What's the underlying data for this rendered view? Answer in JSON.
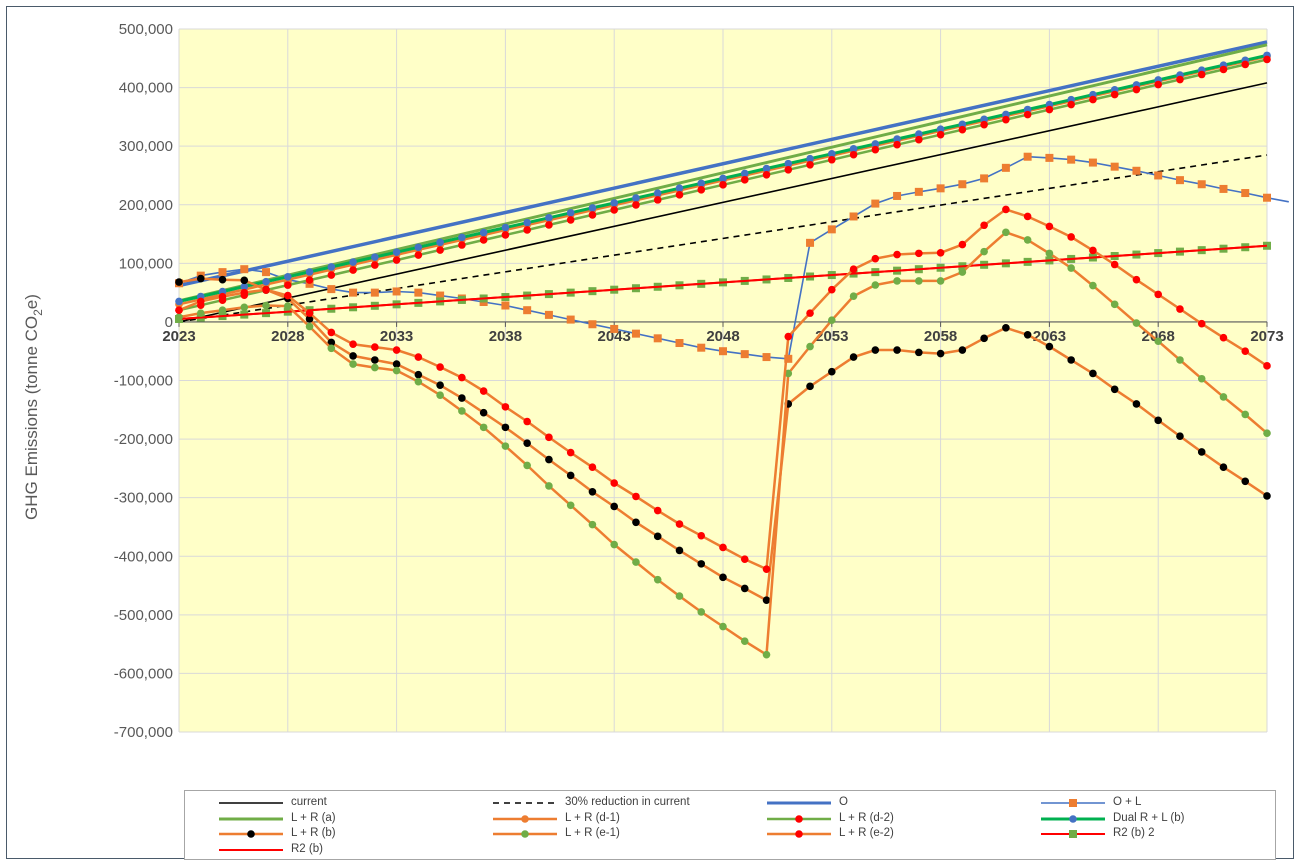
{
  "chart_data": {
    "type": "line",
    "title": "",
    "xlabel": "",
    "ylabel": "GHG Emissions (tonne CO2e)",
    "ylabel_parts": {
      "pre": "GHG Emissions (tonne CO",
      "sub": "2",
      "post": "e)"
    },
    "xlim": [
      2023,
      2073
    ],
    "ylim": [
      -700000,
      500000
    ],
    "x_ticks": [
      "2023",
      "2028",
      "2033",
      "2038",
      "2043",
      "2048",
      "2053",
      "2058",
      "2063",
      "2068",
      "2073"
    ],
    "y_ticks": [
      "500,000",
      "400,000",
      "300,000",
      "200,000",
      "100,000",
      "0",
      "-100,000",
      "-200,000",
      "-300,000",
      "-400,000",
      "-500,000",
      "-600,000",
      "-700,000"
    ],
    "grid": true,
    "plot_background": "#ffffc8",
    "legend_position": "bottom",
    "series": [
      {
        "name": "current",
        "color": "#000000",
        "style": "solid",
        "marker": "none",
        "points": [
          [
            2023,
            0
          ],
          [
            2073,
            408000
          ]
        ]
      },
      {
        "name": "30% reduction in current",
        "color": "#000000",
        "style": "dashed",
        "marker": "none",
        "points": [
          [
            2023,
            0
          ],
          [
            2073,
            285000
          ]
        ]
      },
      {
        "name": "O",
        "color": "#4472c4",
        "style": "solid",
        "width": 3.5,
        "marker": "none",
        "points": [
          [
            2023,
            62000
          ],
          [
            2073,
            478000
          ]
        ]
      },
      {
        "name": "O + L",
        "color": "#4472c4",
        "style": "solid",
        "marker": "square",
        "marker_color": "#ed7d31",
        "points": [
          [
            2023,
            66000
          ],
          [
            2024,
            79000
          ],
          [
            2025,
            85000
          ],
          [
            2026,
            90000
          ],
          [
            2027,
            85000
          ],
          [
            2028,
            72000
          ],
          [
            2029,
            65000
          ],
          [
            2030,
            56000
          ],
          [
            2031,
            50000
          ],
          [
            2032,
            50000
          ],
          [
            2033,
            52000
          ],
          [
            2034,
            50000
          ],
          [
            2035,
            45000
          ],
          [
            2036,
            40000
          ],
          [
            2037,
            34000
          ],
          [
            2038,
            28000
          ],
          [
            2039,
            20000
          ],
          [
            2040,
            12000
          ],
          [
            2041,
            4000
          ],
          [
            2042,
            -4000
          ],
          [
            2043,
            -12000
          ],
          [
            2044,
            -20000
          ],
          [
            2045,
            -28000
          ],
          [
            2046,
            -36000
          ],
          [
            2047,
            -44000
          ],
          [
            2048,
            -50000
          ],
          [
            2049,
            -55000
          ],
          [
            2050,
            -60000
          ],
          [
            2051,
            -63000
          ],
          [
            2052,
            135000
          ],
          [
            2053,
            158000
          ],
          [
            2054,
            180000
          ],
          [
            2055,
            202000
          ],
          [
            2056,
            215000
          ],
          [
            2057,
            222000
          ],
          [
            2058,
            228000
          ],
          [
            2059,
            235000
          ],
          [
            2060,
            245000
          ],
          [
            2061,
            263000
          ],
          [
            2062,
            282000
          ],
          [
            2063,
            280000
          ],
          [
            2064,
            277000
          ],
          [
            2065,
            272000
          ],
          [
            2066,
            265000
          ],
          [
            2067,
            258000
          ],
          [
            2068,
            250000
          ],
          [
            2069,
            242000
          ],
          [
            2070,
            235000
          ],
          [
            2071,
            227000
          ],
          [
            2072,
            220000
          ],
          [
            2073,
            212000
          ],
          [
            2074,
            205000
          ]
        ]
      },
      {
        "name": "L + R (a)",
        "color": "#70ad47",
        "style": "solid",
        "width": 3,
        "marker": "none",
        "points": [
          [
            2023,
            36000
          ],
          [
            2073,
            473000
          ]
        ]
      },
      {
        "name": "L + R (d-1)",
        "color": "#ed7d31",
        "style": "solid",
        "width": 2.5,
        "marker": "circle",
        "marker_color": "#ed7d31",
        "points": [
          [
            2023,
            30000
          ],
          [
            2073,
            453000
          ]
        ]
      },
      {
        "name": "L + R (d-2)",
        "color": "#70ad47",
        "style": "solid",
        "width": 2.5,
        "marker": "circle",
        "marker_color": "#ff0000",
        "points": [
          [
            2023,
            20000
          ],
          [
            2073,
            448000
          ]
        ]
      },
      {
        "name": "Dual R + L (b)",
        "color": "#00b050",
        "style": "solid",
        "width": 3,
        "marker": "circle",
        "marker_color": "#4472c4",
        "points": [
          [
            2023,
            35000
          ],
          [
            2073,
            455000
          ]
        ]
      },
      {
        "name": "L + R (b)",
        "color": "#ed7d31",
        "style": "solid",
        "width": 2.5,
        "marker": "circle",
        "marker_color": "#000000",
        "points": [
          [
            2023,
            68000
          ],
          [
            2024,
            74000
          ],
          [
            2025,
            72000
          ],
          [
            2026,
            71000
          ],
          [
            2027,
            55000
          ],
          [
            2028,
            40000
          ],
          [
            2029,
            5000
          ],
          [
            2030,
            -35000
          ],
          [
            2031,
            -58000
          ],
          [
            2032,
            -65000
          ],
          [
            2033,
            -72000
          ],
          [
            2034,
            -90000
          ],
          [
            2035,
            -108000
          ],
          [
            2036,
            -130000
          ],
          [
            2037,
            -155000
          ],
          [
            2038,
            -180000
          ],
          [
            2039,
            -207000
          ],
          [
            2040,
            -235000
          ],
          [
            2041,
            -262000
          ],
          [
            2042,
            -290000
          ],
          [
            2043,
            -315000
          ],
          [
            2044,
            -342000
          ],
          [
            2045,
            -366000
          ],
          [
            2046,
            -390000
          ],
          [
            2047,
            -413000
          ],
          [
            2048,
            -436000
          ],
          [
            2049,
            -455000
          ],
          [
            2050,
            -475000
          ],
          [
            2051,
            -140000
          ],
          [
            2052,
            -110000
          ],
          [
            2053,
            -85000
          ],
          [
            2054,
            -60000
          ],
          [
            2055,
            -48000
          ],
          [
            2056,
            -48000
          ],
          [
            2057,
            -52000
          ],
          [
            2058,
            -54000
          ],
          [
            2059,
            -48000
          ],
          [
            2060,
            -28000
          ],
          [
            2061,
            -10000
          ],
          [
            2062,
            -22000
          ],
          [
            2063,
            -42000
          ],
          [
            2064,
            -65000
          ],
          [
            2065,
            -88000
          ],
          [
            2066,
            -115000
          ],
          [
            2067,
            -140000
          ],
          [
            2068,
            -168000
          ],
          [
            2069,
            -195000
          ],
          [
            2070,
            -222000
          ],
          [
            2071,
            -248000
          ],
          [
            2072,
            -272000
          ],
          [
            2073,
            -297000
          ]
        ]
      },
      {
        "name": "L + R (e-1)",
        "color": "#ed7d31",
        "style": "solid",
        "width": 2.5,
        "marker": "circle",
        "marker_color": "#70ad47",
        "points": [
          [
            2023,
            8000
          ],
          [
            2024,
            15000
          ],
          [
            2025,
            20000
          ],
          [
            2026,
            25000
          ],
          [
            2027,
            28000
          ],
          [
            2028,
            27000
          ],
          [
            2029,
            -8000
          ],
          [
            2030,
            -45000
          ],
          [
            2031,
            -72000
          ],
          [
            2032,
            -78000
          ],
          [
            2033,
            -83000
          ],
          [
            2034,
            -102000
          ],
          [
            2035,
            -125000
          ],
          [
            2036,
            -152000
          ],
          [
            2037,
            -180000
          ],
          [
            2038,
            -212000
          ],
          [
            2039,
            -245000
          ],
          [
            2040,
            -280000
          ],
          [
            2041,
            -313000
          ],
          [
            2042,
            -346000
          ],
          [
            2043,
            -380000
          ],
          [
            2044,
            -410000
          ],
          [
            2045,
            -440000
          ],
          [
            2046,
            -468000
          ],
          [
            2047,
            -495000
          ],
          [
            2048,
            -520000
          ],
          [
            2049,
            -545000
          ],
          [
            2050,
            -568000
          ],
          [
            2051,
            -88000
          ],
          [
            2052,
            -42000
          ],
          [
            2053,
            3000
          ],
          [
            2054,
            44000
          ],
          [
            2055,
            63000
          ],
          [
            2056,
            70000
          ],
          [
            2057,
            70000
          ],
          [
            2058,
            70000
          ],
          [
            2059,
            85000
          ],
          [
            2060,
            120000
          ],
          [
            2061,
            153000
          ],
          [
            2062,
            140000
          ],
          [
            2063,
            117000
          ],
          [
            2064,
            92000
          ],
          [
            2065,
            62000
          ],
          [
            2066,
            30000
          ],
          [
            2067,
            -2000
          ],
          [
            2068,
            -33000
          ],
          [
            2069,
            -65000
          ],
          [
            2070,
            -97000
          ],
          [
            2071,
            -128000
          ],
          [
            2072,
            -158000
          ],
          [
            2073,
            -190000
          ]
        ]
      },
      {
        "name": "L + R (e-2)",
        "color": "#ed7d31",
        "style": "solid",
        "width": 2.5,
        "marker": "circle",
        "marker_color": "#ff0000",
        "points": [
          [
            2023,
            20000
          ],
          [
            2024,
            35000
          ],
          [
            2025,
            43000
          ],
          [
            2026,
            50000
          ],
          [
            2027,
            55000
          ],
          [
            2028,
            45000
          ],
          [
            2029,
            15000
          ],
          [
            2030,
            -18000
          ],
          [
            2031,
            -38000
          ],
          [
            2032,
            -43000
          ],
          [
            2033,
            -48000
          ],
          [
            2034,
            -60000
          ],
          [
            2035,
            -77000
          ],
          [
            2036,
            -95000
          ],
          [
            2037,
            -118000
          ],
          [
            2038,
            -145000
          ],
          [
            2039,
            -170000
          ],
          [
            2040,
            -197000
          ],
          [
            2041,
            -223000
          ],
          [
            2042,
            -248000
          ],
          [
            2043,
            -275000
          ],
          [
            2044,
            -298000
          ],
          [
            2045,
            -322000
          ],
          [
            2046,
            -345000
          ],
          [
            2047,
            -365000
          ],
          [
            2048,
            -385000
          ],
          [
            2049,
            -405000
          ],
          [
            2050,
            -422000
          ],
          [
            2051,
            -25000
          ],
          [
            2052,
            15000
          ],
          [
            2053,
            55000
          ],
          [
            2054,
            90000
          ],
          [
            2055,
            108000
          ],
          [
            2056,
            115000
          ],
          [
            2057,
            117000
          ],
          [
            2058,
            118000
          ],
          [
            2059,
            132000
          ],
          [
            2060,
            165000
          ],
          [
            2061,
            192000
          ],
          [
            2062,
            180000
          ],
          [
            2063,
            163000
          ],
          [
            2064,
            145000
          ],
          [
            2065,
            122000
          ],
          [
            2066,
            98000
          ],
          [
            2067,
            72000
          ],
          [
            2068,
            47000
          ],
          [
            2069,
            22000
          ],
          [
            2070,
            -3000
          ],
          [
            2071,
            -27000
          ],
          [
            2072,
            -50000
          ],
          [
            2073,
            -75000
          ]
        ]
      },
      {
        "name": "R2 (b) 2",
        "color": "#ff0000",
        "style": "solid",
        "width": 2,
        "marker": "square",
        "marker_color": "#70ad47",
        "points": [
          [
            2023,
            5000
          ],
          [
            2073,
            130000
          ]
        ]
      },
      {
        "name": "R2 (b)",
        "color": "#ff0000",
        "style": "solid",
        "width": 2,
        "marker": "none",
        "points": [
          [
            2023,
            5000
          ],
          [
            2073,
            130000
          ]
        ]
      }
    ]
  }
}
